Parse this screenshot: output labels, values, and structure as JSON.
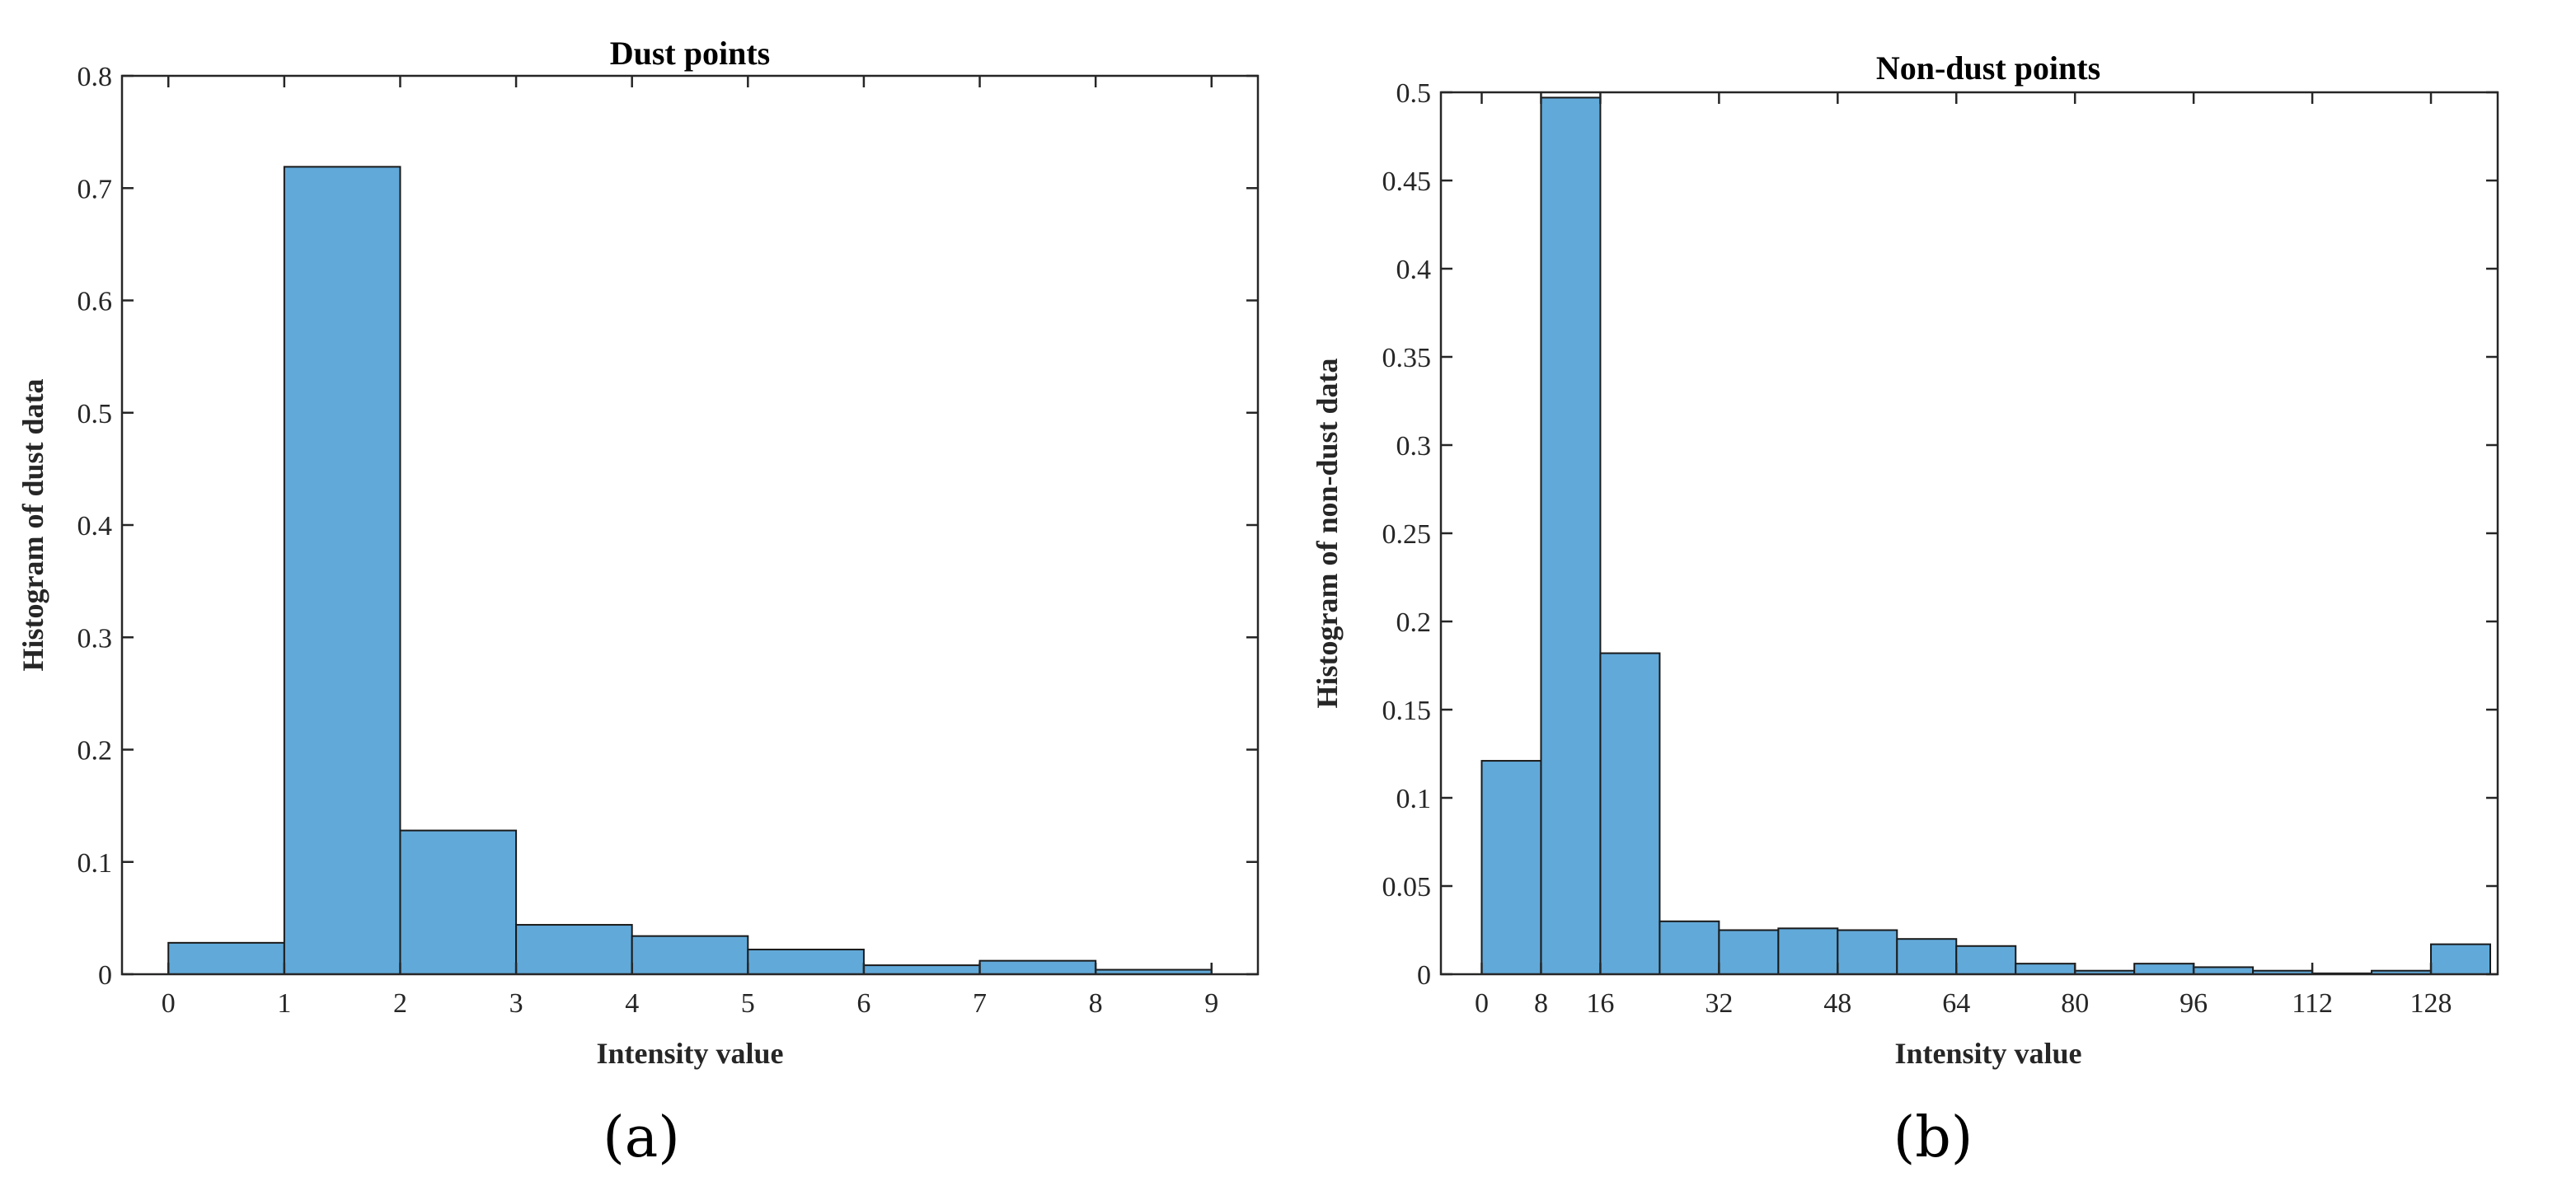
{
  "bar_color": "#61a9d9",
  "edge_color": "#1a1a1a",
  "chart_data": [
    {
      "type": "bar",
      "title": "Dust points",
      "xlabel": "Intensity value",
      "ylabel": "Histogram of dust data",
      "panel_label": "(a)",
      "xlim": [
        -0.4,
        9.4
      ],
      "ylim": [
        0,
        0.8
      ],
      "xticks": [
        0,
        1,
        2,
        3,
        4,
        5,
        6,
        7,
        8,
        9
      ],
      "yticks": [
        0,
        0.1,
        0.2,
        0.3,
        0.4,
        0.5,
        0.6,
        0.7,
        0.8
      ],
      "xtick_labels": [
        "0",
        "1",
        "2",
        "3",
        "4",
        "5",
        "6",
        "7",
        "8",
        "9"
      ],
      "ytick_labels": [
        "0",
        "0.1",
        "0.2",
        "0.3",
        "0.4",
        "0.5",
        "0.6",
        "0.7",
        "0.8"
      ],
      "bin_edges": [
        0,
        1,
        2,
        3,
        4,
        5,
        6,
        7,
        8,
        9
      ],
      "values": [
        0.028,
        0.719,
        0.128,
        0.044,
        0.034,
        0.022,
        0.008,
        0.012,
        0.004
      ]
    },
    {
      "type": "bar",
      "title": "Non-dust points",
      "xlabel": "Intensity value",
      "ylabel": "Histogram of non-dust data",
      "panel_label": "(b)",
      "xlim": [
        -5.5,
        137
      ],
      "ylim": [
        0,
        0.5
      ],
      "xticks": [
        0,
        8,
        16,
        32,
        48,
        64,
        80,
        96,
        112,
        128
      ],
      "yticks": [
        0,
        0.05,
        0.1,
        0.15,
        0.2,
        0.25,
        0.3,
        0.35,
        0.4,
        0.45,
        0.5
      ],
      "xtick_labels": [
        "0",
        "8",
        "16",
        "32",
        "48",
        "64",
        "80",
        "96",
        "112",
        "128"
      ],
      "ytick_labels": [
        "0",
        "0.05",
        "0.1",
        "0.15",
        "0.2",
        "0.25",
        "0.3",
        "0.35",
        "0.4",
        "0.45",
        "0.5"
      ],
      "bin_edges": [
        0,
        8,
        16,
        24,
        32,
        40,
        48,
        56,
        64,
        72,
        80,
        88,
        96,
        104,
        112,
        120,
        128,
        136
      ],
      "values": [
        0.121,
        0.497,
        0.182,
        0.03,
        0.025,
        0.026,
        0.025,
        0.02,
        0.016,
        0.006,
        0.002,
        0.006,
        0.004,
        0.002,
        0.0005,
        0.002,
        0.017
      ]
    }
  ]
}
